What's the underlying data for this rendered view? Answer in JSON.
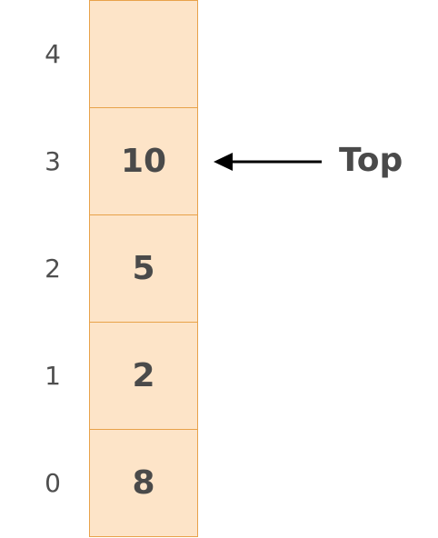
{
  "stack": {
    "indices": [
      "4",
      "3",
      "2",
      "1",
      "0"
    ],
    "values": [
      "",
      "10",
      "5",
      "2",
      "8"
    ]
  },
  "pointer": {
    "label": "Top",
    "target_index": 3
  },
  "colors": {
    "cell_fill": "#fde4c8",
    "cell_border": "#e8a24a",
    "text": "#4a4a4a",
    "arrow": "#000000"
  }
}
